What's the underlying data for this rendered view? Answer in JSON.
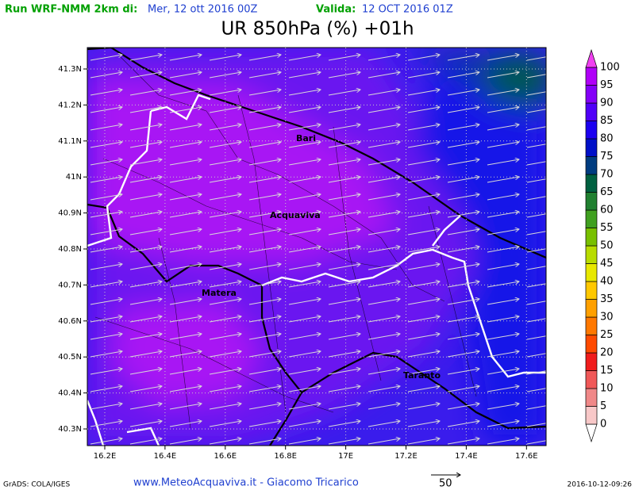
{
  "header": {
    "run_label": "Run WRF-NMM 2km di:",
    "run_date": "Mer, 12 ott 2016 00Z",
    "valid_label": "Valida:",
    "valid_date": "12 OCT 2016 01Z",
    "title": "UR 850hPa (%) +01h"
  },
  "map": {
    "lon_ticks": [
      {
        "value": 16.2,
        "label": "16.2E"
      },
      {
        "value": 16.4,
        "label": "16.4E"
      },
      {
        "value": 16.6,
        "label": "16.6E"
      },
      {
        "value": 16.8,
        "label": "16.8E"
      },
      {
        "value": 17,
        "label": "17E"
      },
      {
        "value": 17.2,
        "label": "17.2E"
      },
      {
        "value": 17.4,
        "label": "17.4E"
      },
      {
        "value": 17.6,
        "label": "17.6E"
      }
    ],
    "lat_ticks": [
      {
        "value": 41.3,
        "label": "41.3N"
      },
      {
        "value": 41.2,
        "label": "41.2N"
      },
      {
        "value": 41.1,
        "label": "41.1N"
      },
      {
        "value": 41,
        "label": "41N"
      },
      {
        "value": 40.9,
        "label": "40.9N"
      },
      {
        "value": 40.8,
        "label": "40.8N"
      },
      {
        "value": 40.7,
        "label": "40.7N"
      },
      {
        "value": 40.6,
        "label": "40.6N"
      },
      {
        "value": 40.5,
        "label": "40.5N"
      },
      {
        "value": 40.4,
        "label": "40.4N"
      },
      {
        "value": 40.3,
        "label": "40.3N"
      }
    ],
    "cities": [
      "Bari",
      "Acquaviva",
      "Matera",
      "Taranto"
    ]
  },
  "colorbar": {
    "levels": [
      0,
      5,
      10,
      15,
      20,
      25,
      30,
      35,
      40,
      45,
      50,
      55,
      60,
      65,
      70,
      75,
      80,
      85,
      90,
      95,
      100
    ],
    "colors": [
      "#ffffff",
      "#f8c8c8",
      "#f08888",
      "#f05858",
      "#f01c1c",
      "#ff4a00",
      "#ff7800",
      "#ffa000",
      "#ffc800",
      "#e8e800",
      "#b8dc00",
      "#78c000",
      "#40a020",
      "#208030",
      "#006040",
      "#003c80",
      "#0010c8",
      "#1c00f0",
      "#5000f8",
      "#8400f8",
      "#b000f8",
      "#f040f0"
    ]
  },
  "footer": {
    "credit": "GrADS: COLA/IGES",
    "site": "www.MeteoAcquaviva.it - Giacomo Tricarico",
    "vector_scale": "50",
    "timestamp": "2016-10-12-09:26"
  }
}
